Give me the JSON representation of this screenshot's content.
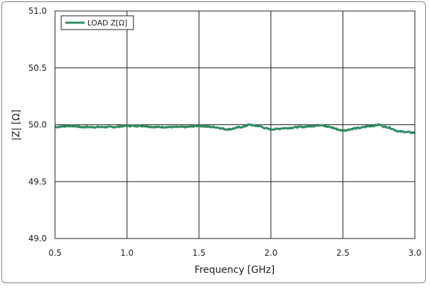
{
  "chart_data": {
    "type": "line",
    "title": "",
    "xlabel": "Frequency [GHz]",
    "ylabel": "|Z| [Ω]",
    "xlim": [
      0.5,
      3.0
    ],
    "ylim": [
      49.0,
      51.0
    ],
    "x_ticks": [
      "0.5",
      "1.0",
      "1.5",
      "2.0",
      "2.5",
      "3.0"
    ],
    "y_ticks": [
      "49.0",
      "49.5",
      "50.0",
      "50.5",
      "51.0"
    ],
    "grid": true,
    "legend_position": "top-left",
    "series": [
      {
        "name": "LOAD Z[Ω]",
        "color": "#2e8b62",
        "x": [
          0.5,
          0.6,
          0.7,
          0.8,
          0.9,
          1.0,
          1.1,
          1.2,
          1.3,
          1.4,
          1.5,
          1.6,
          1.7,
          1.8,
          1.85,
          1.9,
          2.0,
          2.1,
          2.2,
          2.3,
          2.35,
          2.4,
          2.5,
          2.6,
          2.7,
          2.75,
          2.8,
          2.9,
          3.0
        ],
        "values": [
          49.98,
          49.99,
          49.98,
          49.98,
          49.98,
          49.99,
          49.99,
          49.98,
          49.98,
          49.98,
          49.99,
          49.98,
          49.96,
          49.98,
          50.0,
          49.99,
          49.96,
          49.97,
          49.98,
          49.99,
          50.0,
          49.98,
          49.95,
          49.97,
          49.99,
          50.0,
          49.98,
          49.94,
          49.93
        ]
      }
    ]
  }
}
